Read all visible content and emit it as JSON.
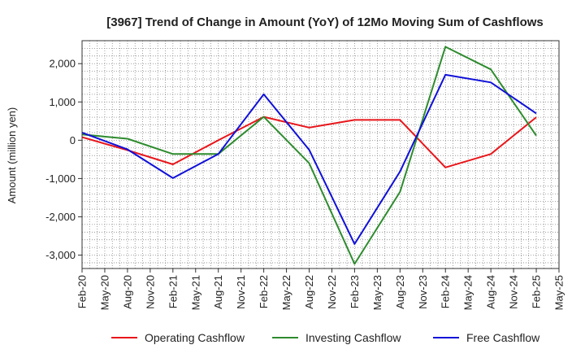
{
  "chart_data": {
    "type": "line",
    "title": "[3967]  Trend of Change in Amount (YoY) of 12Mo Moving Sum of Cashflows",
    "xlabel": "",
    "ylabel": "Amount (million yen)",
    "ylim": [
      -3350,
      2600
    ],
    "yticks": [
      2000,
      1000,
      0,
      -1000,
      -2000,
      -3000
    ],
    "ytick_labels": [
      "2,000",
      "1,000",
      "0",
      "-1,000",
      "-2,000",
      "-3,000"
    ],
    "xtick_labels": [
      "Feb-20",
      "May-20",
      "Aug-20",
      "Nov-20",
      "Feb-21",
      "May-21",
      "Aug-21",
      "Nov-21",
      "Feb-22",
      "May-22",
      "Aug-22",
      "Nov-22",
      "Feb-23",
      "May-23",
      "Aug-23",
      "Nov-23",
      "Feb-24",
      "May-24",
      "Aug-24",
      "Nov-24",
      "Feb-25",
      "May-25"
    ],
    "categories": [
      "Feb-20",
      "Aug-20",
      "Feb-21",
      "Aug-21",
      "Feb-22",
      "Aug-22",
      "Feb-23",
      "Aug-23",
      "Feb-24",
      "Aug-24",
      "Feb-25"
    ],
    "series": [
      {
        "name": "Operating Cashflow",
        "color": "#e8161b",
        "values": [
          80,
          -260,
          -630,
          0,
          610,
          330,
          530,
          530,
          -710,
          -360,
          600
        ]
      },
      {
        "name": "Investing Cashflow",
        "color": "#2e8b2e",
        "values": [
          150,
          40,
          -360,
          -360,
          610,
          -600,
          -3230,
          -1350,
          2440,
          1850,
          120
        ]
      },
      {
        "name": "Free Cashflow",
        "color": "#1010d8",
        "values": [
          200,
          -240,
          -990,
          -360,
          1200,
          -250,
          -2710,
          -820,
          1710,
          1510,
          700
        ]
      }
    ],
    "legend_position": "bottom",
    "grid": true
  }
}
